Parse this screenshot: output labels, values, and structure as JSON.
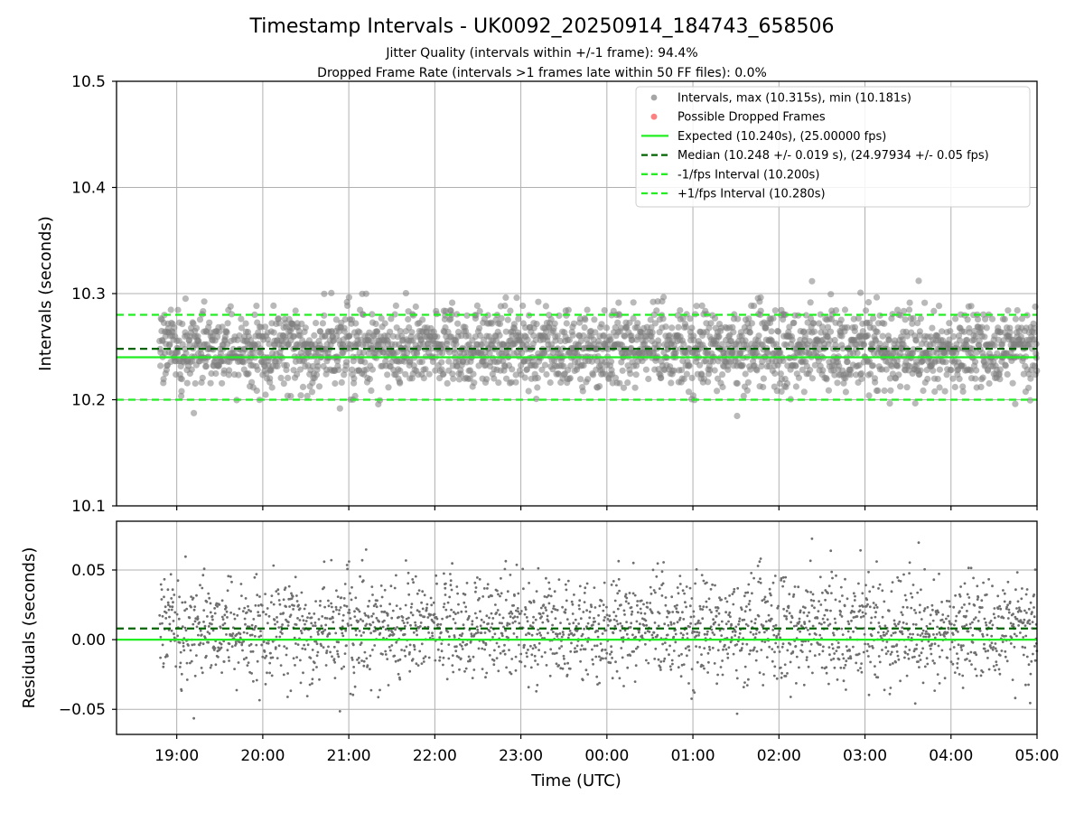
{
  "chart_data": {
    "type": "scatter",
    "title": "Timestamp Intervals - UK0092_20250914_184743_658506",
    "subtitle_lines": [
      "Jitter Quality (intervals within +/-1 frame): 94.4%",
      "Dropped Frame Rate (intervals >1 frames late within 50 FF files): 0.0%"
    ],
    "xlabel": "Time (UTC)",
    "x_ticks": [
      "19:00",
      "20:00",
      "21:00",
      "22:00",
      "23:00",
      "00:00",
      "01:00",
      "02:00",
      "03:00",
      "04:00",
      "05:00"
    ],
    "x_range_hours": [
      18.3,
      29.0
    ],
    "data_x_range_hours": [
      18.8,
      29.0
    ],
    "top_panel": {
      "ylabel": "Intervals (seconds)",
      "ylim": [
        10.1,
        10.5
      ],
      "y_ticks": [
        "10.1",
        "10.2",
        "10.3",
        "10.4",
        "10.5"
      ],
      "y_tick_values": [
        10.1,
        10.2,
        10.3,
        10.4,
        10.5
      ],
      "legend": [
        {
          "label": "Intervals, max (10.315s), min (10.181s)",
          "kind": "marker",
          "color": "#808080"
        },
        {
          "label": "Possible Dropped Frames",
          "kind": "marker",
          "color": "#ff4a4a"
        },
        {
          "label": "Expected (10.240s), (25.00000 fps)",
          "kind": "solid",
          "color": "#22ee22"
        },
        {
          "label": "Median (10.248 +/- 0.019 s), (24.97934 +/- 0.05 fps)",
          "kind": "dashed",
          "color": "#006400"
        },
        {
          "label": "-1/fps Interval (10.200s)",
          "kind": "dashed",
          "color": "#22ee22"
        },
        {
          "label": "+1/fps Interval (10.280s)",
          "kind": "dashed",
          "color": "#22ee22"
        }
      ],
      "reference_lines": {
        "expected": 10.24,
        "median": 10.248,
        "minus_one_frame": 10.2,
        "plus_one_frame": 10.28
      },
      "series_summary": {
        "name": "Intervals",
        "max": 10.315,
        "min": 10.181,
        "center": 10.248,
        "spread": 0.019,
        "count": 2500
      },
      "dropped_frames": []
    },
    "bottom_panel": {
      "ylabel": "Residuals (seconds)",
      "ylim": [
        -0.068,
        0.085
      ],
      "y_ticks": [
        "−0.05",
        "0.00",
        "0.05"
      ],
      "y_tick_values": [
        -0.05,
        0.0,
        0.05
      ],
      "reference_lines": {
        "zero": 0.0,
        "median_offset": 0.008
      },
      "series_summary": {
        "name": "Residuals",
        "max": 0.075,
        "min": -0.059,
        "center": 0.008,
        "spread": 0.019,
        "count": 2500
      }
    },
    "colors": {
      "points": "#808080",
      "expected": "#22ee22",
      "median": "#006400",
      "grid": "#b0b0b0",
      "legend_border": "#cccccc"
    }
  }
}
